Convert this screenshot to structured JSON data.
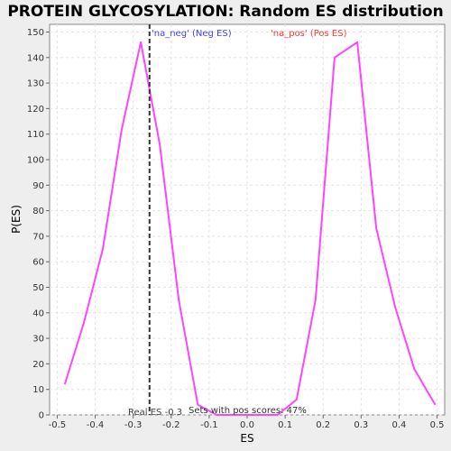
{
  "chart_data": {
    "type": "line",
    "title": "PROTEIN GLYCOSYLATION: Random ES distribution",
    "xlabel": "ES",
    "ylabel": "P(ES)",
    "xlim": [
      -0.52,
      0.52
    ],
    "ylim": [
      0,
      153
    ],
    "xticks": [
      -0.5,
      -0.4,
      -0.3,
      -0.2,
      -0.1,
      0.0,
      0.1,
      0.2,
      0.3,
      0.4,
      0.5
    ],
    "xtick_labels": [
      "-0.5",
      "-0.4",
      "-0.3",
      "-0.2",
      "-0.1",
      "0.0",
      "0.1",
      "0.2",
      "0.3",
      "0.4",
      "0.5"
    ],
    "yticks": [
      0,
      10,
      20,
      30,
      40,
      50,
      60,
      70,
      80,
      90,
      100,
      110,
      120,
      130,
      140,
      150
    ],
    "grid": true,
    "line_color": "#ff44ff",
    "series": [
      {
        "x": [
          -0.48,
          -0.43,
          -0.38,
          -0.33,
          -0.28,
          -0.23,
          -0.18,
          -0.13,
          -0.08,
          0.08,
          0.13,
          0.18,
          0.23,
          0.29,
          0.34,
          0.39,
          0.44,
          0.495
        ],
        "values": [
          12,
          36,
          65,
          112,
          146,
          106,
          45,
          4,
          0,
          0,
          6,
          45,
          140,
          146,
          73,
          42,
          18,
          4
        ]
      }
    ],
    "real_es": -0.257,
    "annotations": {
      "neg_label": "'na_neg' (Neg ES)",
      "neg_color": "#4040ff",
      "pos_label": "'na_pos' (Pos ES)",
      "pos_color": "#ff3333",
      "real_es_label": "Real ES -0.3",
      "sets_label": "Sets with pos scores: 47%"
    }
  }
}
